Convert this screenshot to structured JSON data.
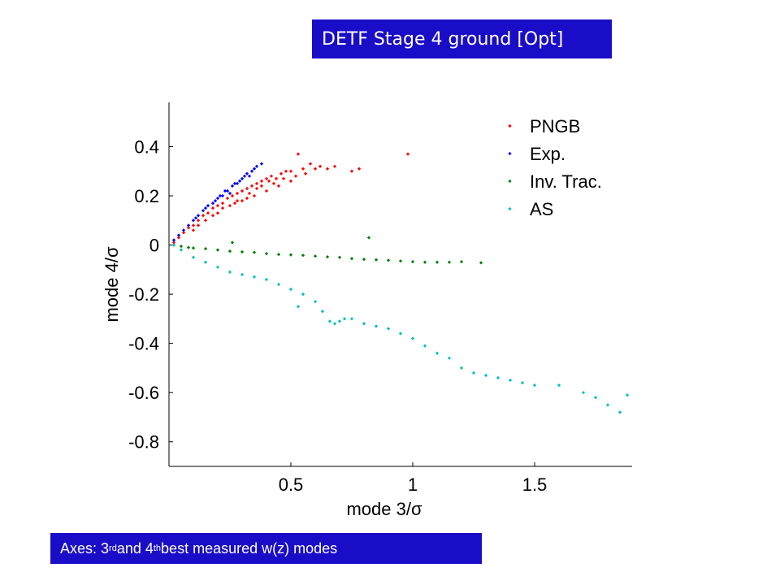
{
  "slide": {
    "title": "DETF Stage 4 ground [Opt]",
    "footer": {
      "prefix": "Axes: 3",
      "sup1": "rd",
      "mid": " and 4",
      "sup2": "th",
      "suffix": "  best measured w(z) modes"
    }
  },
  "colors": {
    "banner": "#1a0dc8",
    "PNGB": "#ff0000",
    "Exp.": "#0000ff",
    "Inv. Trac.": "#008000",
    "AS": "#00bfbf"
  },
  "chart_data": {
    "type": "scatter",
    "xlabel": "mode 3/σ",
    "ylabel": "mode 4/σ",
    "xlim": [
      0,
      1.9
    ],
    "ylim": [
      -0.9,
      0.58
    ],
    "xticks": [
      "0.5",
      "1",
      "1.5"
    ],
    "xtick_values": [
      0.5,
      1,
      1.5
    ],
    "yticks": [
      "0.4",
      "0.2",
      "0",
      "-0.2",
      "-0.4",
      "-0.6",
      "-0.8"
    ],
    "ytick_values": [
      0.4,
      0.2,
      0,
      -0.2,
      -0.4,
      -0.6,
      -0.8
    ],
    "legend_position": "top-right",
    "series": [
      {
        "name": "PNGB",
        "points": [
          [
            0.02,
            0.01
          ],
          [
            0.04,
            0.03
          ],
          [
            0.06,
            0.05
          ],
          [
            0.08,
            0.07
          ],
          [
            0.1,
            0.08
          ],
          [
            0.12,
            0.1
          ],
          [
            0.14,
            0.12
          ],
          [
            0.16,
            0.13
          ],
          [
            0.18,
            0.15
          ],
          [
            0.2,
            0.16
          ],
          [
            0.22,
            0.17
          ],
          [
            0.24,
            0.19
          ],
          [
            0.26,
            0.2
          ],
          [
            0.28,
            0.21
          ],
          [
            0.3,
            0.22
          ],
          [
            0.32,
            0.23
          ],
          [
            0.34,
            0.24
          ],
          [
            0.36,
            0.25
          ],
          [
            0.38,
            0.26
          ],
          [
            0.4,
            0.27
          ],
          [
            0.42,
            0.28
          ],
          [
            0.44,
            0.27
          ],
          [
            0.46,
            0.29
          ],
          [
            0.48,
            0.3
          ],
          [
            0.5,
            0.3
          ],
          [
            0.52,
            0.28
          ],
          [
            0.55,
            0.31
          ],
          [
            0.58,
            0.33
          ],
          [
            0.6,
            0.31
          ],
          [
            0.62,
            0.32
          ],
          [
            0.65,
            0.31
          ],
          [
            0.68,
            0.32
          ],
          [
            0.75,
            0.3
          ],
          [
            0.78,
            0.31
          ],
          [
            0.98,
            0.37
          ],
          [
            0.53,
            0.37
          ],
          [
            0.1,
            0.06
          ],
          [
            0.15,
            0.1
          ],
          [
            0.2,
            0.13
          ],
          [
            0.25,
            0.16
          ],
          [
            0.3,
            0.18
          ],
          [
            0.35,
            0.2
          ],
          [
            0.4,
            0.22
          ],
          [
            0.12,
            0.08
          ],
          [
            0.18,
            0.12
          ],
          [
            0.28,
            0.18
          ],
          [
            0.33,
            0.21
          ],
          [
            0.38,
            0.24
          ],
          [
            0.43,
            0.25
          ],
          [
            0.47,
            0.27
          ],
          [
            0.22,
            0.15
          ],
          [
            0.27,
            0.17
          ],
          [
            0.32,
            0.19
          ],
          [
            0.36,
            0.23
          ],
          [
            0.41,
            0.26
          ],
          [
            0.45,
            0.24
          ],
          [
            0.5,
            0.26
          ],
          [
            0.56,
            0.29
          ]
        ]
      },
      {
        "name": "Exp.",
        "points": [
          [
            0.02,
            0.02
          ],
          [
            0.04,
            0.04
          ],
          [
            0.06,
            0.06
          ],
          [
            0.08,
            0.08
          ],
          [
            0.1,
            0.1
          ],
          [
            0.12,
            0.12
          ],
          [
            0.14,
            0.14
          ],
          [
            0.16,
            0.16
          ],
          [
            0.18,
            0.17
          ],
          [
            0.2,
            0.19
          ],
          [
            0.22,
            0.2
          ],
          [
            0.24,
            0.22
          ],
          [
            0.26,
            0.24
          ],
          [
            0.28,
            0.25
          ],
          [
            0.3,
            0.27
          ],
          [
            0.32,
            0.29
          ],
          [
            0.34,
            0.3
          ],
          [
            0.36,
            0.32
          ],
          [
            0.38,
            0.33
          ],
          [
            0.11,
            0.11
          ],
          [
            0.15,
            0.15
          ],
          [
            0.19,
            0.18
          ],
          [
            0.23,
            0.22
          ],
          [
            0.27,
            0.25
          ],
          [
            0.31,
            0.28
          ],
          [
            0.35,
            0.31
          ],
          [
            0.25,
            0.21
          ],
          [
            0.29,
            0.26
          ],
          [
            0.33,
            0.28
          ],
          [
            0.21,
            0.2
          ]
        ]
      },
      {
        "name": "Inv. Trac.",
        "points": [
          [
            0.02,
            0.0
          ],
          [
            0.05,
            -0.005
          ],
          [
            0.08,
            -0.01
          ],
          [
            0.1,
            -0.012
          ],
          [
            0.15,
            -0.015
          ],
          [
            0.2,
            -0.02
          ],
          [
            0.25,
            -0.025
          ],
          [
            0.3,
            -0.028
          ],
          [
            0.35,
            -0.03
          ],
          [
            0.4,
            -0.035
          ],
          [
            0.45,
            -0.038
          ],
          [
            0.5,
            -0.04
          ],
          [
            0.55,
            -0.042
          ],
          [
            0.6,
            -0.045
          ],
          [
            0.65,
            -0.048
          ],
          [
            0.7,
            -0.05
          ],
          [
            0.75,
            -0.055
          ],
          [
            0.8,
            -0.058
          ],
          [
            0.85,
            -0.06
          ],
          [
            0.9,
            -0.062
          ],
          [
            0.95,
            -0.065
          ],
          [
            1.0,
            -0.068
          ],
          [
            1.05,
            -0.07
          ],
          [
            1.1,
            -0.07
          ],
          [
            1.15,
            -0.07
          ],
          [
            1.2,
            -0.068
          ],
          [
            1.28,
            -0.072
          ],
          [
            0.82,
            0.03
          ],
          [
            0.26,
            0.01
          ]
        ]
      },
      {
        "name": "AS",
        "points": [
          [
            0.02,
            0.0
          ],
          [
            0.05,
            -0.02
          ],
          [
            0.1,
            -0.05
          ],
          [
            0.15,
            -0.07
          ],
          [
            0.2,
            -0.09
          ],
          [
            0.25,
            -0.11
          ],
          [
            0.3,
            -0.12
          ],
          [
            0.35,
            -0.13
          ],
          [
            0.4,
            -0.14
          ],
          [
            0.45,
            -0.16
          ],
          [
            0.5,
            -0.18
          ],
          [
            0.55,
            -0.2
          ],
          [
            0.6,
            -0.23
          ],
          [
            0.63,
            -0.27
          ],
          [
            0.66,
            -0.31
          ],
          [
            0.7,
            -0.31
          ],
          [
            0.75,
            -0.3
          ],
          [
            0.8,
            -0.32
          ],
          [
            0.85,
            -0.33
          ],
          [
            0.9,
            -0.34
          ],
          [
            0.95,
            -0.36
          ],
          [
            1.0,
            -0.38
          ],
          [
            1.05,
            -0.41
          ],
          [
            1.1,
            -0.44
          ],
          [
            1.15,
            -0.46
          ],
          [
            1.2,
            -0.5
          ],
          [
            1.25,
            -0.52
          ],
          [
            1.3,
            -0.53
          ],
          [
            1.35,
            -0.54
          ],
          [
            1.4,
            -0.55
          ],
          [
            1.45,
            -0.56
          ],
          [
            1.5,
            -0.57
          ],
          [
            1.6,
            -0.57
          ],
          [
            1.7,
            -0.6
          ],
          [
            1.75,
            -0.62
          ],
          [
            1.8,
            -0.65
          ],
          [
            1.85,
            -0.68
          ],
          [
            1.88,
            -0.61
          ],
          [
            0.53,
            -0.25
          ],
          [
            0.72,
            -0.3
          ],
          [
            0.68,
            -0.32
          ]
        ]
      }
    ]
  }
}
